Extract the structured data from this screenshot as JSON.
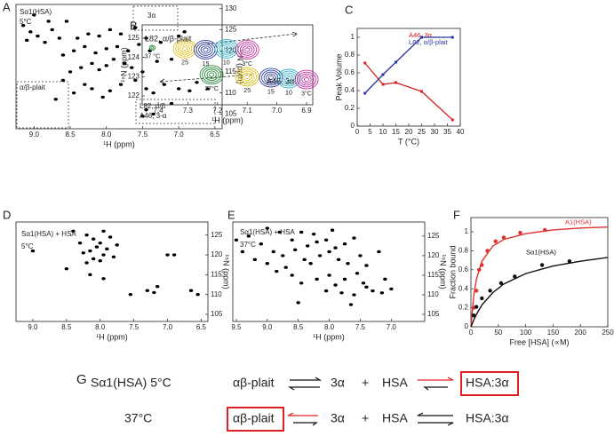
{
  "panel_labels": [
    "A",
    "B",
    "C",
    "D",
    "E",
    "F",
    "G"
  ],
  "chart_data": [
    {
      "type": "spectrum",
      "annotations": [
        "Sα1(HSA)",
        "5°C",
        "3α",
        "α/β-plait",
        "L82, α/β",
        "A46, 3-α"
      ],
      "xlabel": "¹H (ppm)",
      "ylabel": "¹⁵N (ppm)",
      "color": "#000000",
      "xlim": [
        9.25,
        6.4
      ],
      "ylim": [
        101.5,
        131
      ],
      "xticks": [
        {
          "value": 9,
          "label": "9.0"
        },
        8.5,
        {
          "value": 8,
          "label": "8.0"
        },
        7.5,
        {
          "value": 7,
          "label": "7.0"
        },
        6.5
      ],
      "yticks": [
        105,
        110,
        115,
        120,
        125,
        130
      ],
      "x": [
        8.45,
        8.3,
        8.2,
        8.05,
        7.95,
        7.8,
        7.6,
        7.45,
        7.35,
        7.2,
        7.0,
        6.85,
        6.75,
        6.6,
        8.5,
        8.35,
        8.2,
        8.1,
        8.0,
        7.9,
        7.75,
        7.65,
        7.5,
        7.3,
        7.1,
        8.6,
        8.45,
        8.3,
        8.15,
        8.0,
        7.85,
        7.7,
        7.55,
        7.4,
        7.25,
        8.4,
        8.25,
        8.1,
        7.95,
        7.8,
        7.6,
        7.45,
        9.1,
        9.05,
        8.95,
        8.85,
        8.75,
        8.65,
        9.15,
        8.8,
        9.0,
        7.5,
        7.35,
        7.45,
        7.0,
        6.92,
        8.6,
        8.7,
        7.1,
        8.55
      ],
      "values": [
        110,
        112,
        111,
        109,
        110.5,
        112,
        113,
        111,
        110,
        112,
        111,
        110.5,
        112.5,
        111,
        115,
        116,
        117,
        115.5,
        116.5,
        118,
        117,
        116,
        115,
        117.5,
        118,
        119,
        120,
        121,
        119.5,
        120.5,
        121,
        120,
        121.5,
        120,
        122,
        123,
        124,
        123.5,
        125,
        124,
        125.5,
        123,
        122.5,
        124.5,
        123.5,
        122,
        125,
        123,
        126,
        127,
        128.5,
        104.5,
        105,
        106,
        123.5,
        124.5,
        113,
        108.5,
        107.5,
        127
      ]
    },
    {
      "type": "contour",
      "xlabel": "¹H (ppm)",
      "ylabel": "¹⁵N (ppm)",
      "xlim": [
        7.454,
        6.879
      ],
      "ylim": [
        121.54,
        125.69
      ],
      "xticks": [
        7.4,
        7.3,
        7.2,
        7.1,
        {
          "value": 7,
          "label": "7.0"
        },
        6.9
      ],
      "yticks": [
        122,
        123,
        124,
        125
      ],
      "colors": [
        "#2e8b3a",
        "#e0c020",
        "#3040a0",
        "#30b0c8",
        "#c030a0"
      ],
      "rows": [
        {
          "label": "L82, α/β-plait",
          "labels": [
            "37°C",
            "25",
            "15",
            "10",
            "3°C"
          ],
          "x": [
            7.22,
            7.1,
            7.02,
            6.96,
            6.9
          ],
          "values": [
            123.1,
            123.0,
            122.95,
            122.9,
            122.85
          ]
        },
        {
          "label": "A46, 3α",
          "labels": [
            "37 °C",
            "25",
            "15",
            "10",
            "3°C"
          ],
          "x": [
            7.42,
            7.31,
            7.24,
            7.17,
            7.1
          ],
          "values": [
            124.5,
            124.45,
            124.4,
            124.45,
            124.4
          ]
        }
      ]
    },
    {
      "type": "line",
      "xlabel": "T (°C)",
      "ylabel": "Peak Volume",
      "xlim": [
        0,
        40
      ],
      "ylim": [
        0,
        1.1
      ],
      "xticks": [
        0,
        5,
        10,
        15,
        20,
        25,
        30,
        35,
        40
      ],
      "yticks": [
        0,
        0.2,
        0.4,
        0.6,
        0.8,
        1
      ],
      "series": [
        {
          "name": "A46, 3α",
          "color": "#d62020",
          "x": [
            3,
            10,
            15,
            25,
            37
          ],
          "values": [
            0.71,
            0.47,
            0.49,
            0.39,
            0.07
          ]
        },
        {
          "name": "L82, α/β-plait",
          "color": "#2a35a0",
          "x": [
            3,
            10,
            15,
            25,
            37
          ],
          "values": [
            0.37,
            0.58,
            0.72,
            1.0,
            1.0
          ]
        }
      ]
    },
    {
      "type": "spectrum",
      "annotations": [
        "Sα1(HSA) + HSA",
        "5°C"
      ],
      "xlabel": "¹H (ppm)",
      "ylabel": "¹⁵N (ppm)",
      "color": "#000000",
      "xlim": [
        9.25,
        6.4
      ],
      "ylim": [
        103.2,
        128.3
      ],
      "xticks": [
        {
          "value": 9,
          "label": "9.0"
        },
        8.5,
        {
          "value": 8,
          "label": "8.0"
        },
        7.5,
        {
          "value": 7,
          "label": "7.0"
        },
        6.5
      ],
      "yticks": [
        105,
        110,
        115,
        120,
        125
      ],
      "x": [
        8.2,
        8.1,
        8.0,
        7.95,
        8.15,
        8.05,
        7.9,
        8.25,
        8.1,
        8.0,
        7.85,
        8.2,
        7.95,
        8.3,
        7.8,
        7.75,
        7.2,
        7.15,
        7.3,
        6.65,
        6.55,
        7.0,
        6.9,
        7.55,
        8.15,
        7.95,
        8.5,
        9.0,
        8.4
      ],
      "values": [
        118,
        119,
        118.5,
        120,
        121,
        122,
        121.5,
        120.5,
        124,
        123,
        124.5,
        125,
        126,
        123,
        119.5,
        122.5,
        110.5,
        112,
        111,
        111,
        110,
        120,
        120,
        110,
        115,
        114,
        116.5,
        121,
        126
      ]
    },
    {
      "type": "spectrum",
      "annotations": [
        "Sα1(HSA) + HSA",
        "37°C"
      ],
      "xlabel": "¹H (ppm)",
      "ylabel": "¹⁵N (ppm)",
      "color": "#000000",
      "xlim": [
        9.556,
        6.46
      ],
      "ylim": [
        103.2,
        128.6
      ],
      "xticks": [
        9.5,
        {
          "value": 9,
          "label": "9.0"
        },
        8.5,
        {
          "value": 8,
          "label": "8.0"
        },
        7.5,
        {
          "value": 7,
          "label": "7.0"
        }
      ],
      "yticks": [
        105,
        110,
        115,
        120,
        125
      ],
      "x": [
        7.3,
        7.15,
        7.0,
        7.4,
        7.6,
        7.8,
        7.9,
        8.05,
        8.2,
        8.0,
        7.75,
        7.55,
        7.45,
        8.45,
        8.6,
        8.7,
        8.85,
        9.0,
        9.2,
        9.4,
        9.5,
        9.3,
        9.1,
        8.9,
        8.75,
        8.55,
        8.4,
        8.3,
        8.15,
        8.0,
        7.85,
        7.7,
        7.5,
        7.4,
        8.35,
        8.2,
        8.05,
        7.9,
        7.75,
        7.6,
        8.6,
        8.8,
        9.0,
        8.45,
        8.25,
        7.95,
        7.2,
        7.1,
        8.5,
        7.65
      ],
      "values": [
        111,
        110.5,
        111.5,
        112,
        110,
        110.5,
        112.5,
        111,
        114,
        115,
        114,
        115.5,
        113,
        113,
        115,
        117,
        116,
        118,
        119,
        121,
        124,
        125,
        123,
        121,
        120,
        121.5,
        119,
        118,
        120,
        121,
        119,
        118,
        120,
        117.5,
        122.5,
        123.5,
        124,
        122,
        123,
        124.5,
        124,
        126,
        127,
        126,
        125.5,
        126.5,
        121,
        114,
        108,
        107.5
      ]
    },
    {
      "type": "binding",
      "xlabel": "Free [HSA] (∝M)",
      "ylabel": "Fraction bound",
      "xlim": [
        0,
        250
      ],
      "ylim": [
        0,
        1.15
      ],
      "xticks": [
        0,
        50,
        100,
        150,
        200,
        250
      ],
      "yticks": [
        0,
        0.2,
        0.4,
        0.6,
        0.8,
        1
      ],
      "series": [
        {
          "name": "A1(HSA)",
          "color": "#e03030",
          "x": [
            5,
            10,
            15,
            20,
            30,
            45,
            60,
            90,
            135
          ],
          "values": [
            0.2,
            0.38,
            0.6,
            0.65,
            0.8,
            0.9,
            0.94,
            0.99,
            1.02
          ],
          "fit_x": [
            0,
            5,
            10,
            20,
            40,
            60,
            100,
            150,
            200,
            250
          ],
          "fit_values": [
            0,
            0.32,
            0.5,
            0.69,
            0.85,
            0.92,
            0.98,
            1.02,
            1.04,
            1.05
          ]
        },
        {
          "name": "Sα1(HSA)",
          "color": "#111111",
          "x": [
            5,
            10,
            20,
            35,
            55,
            80,
            130,
            180
          ],
          "values": [
            0.12,
            0.21,
            0.3,
            0.38,
            0.46,
            0.53,
            0.65,
            0.69
          ],
          "fit_x": [
            0,
            5,
            10,
            20,
            40,
            60,
            100,
            150,
            200,
            250
          ],
          "fit_values": [
            0,
            0.07,
            0.13,
            0.23,
            0.36,
            0.45,
            0.56,
            0.64,
            0.69,
            0.73
          ]
        }
      ]
    }
  ],
  "scheme": {
    "row1": {
      "condition": "Sα1(HSA) 5°C",
      "a": "αβ-plait",
      "b": "3α",
      "plus": "+",
      "c": "HSA",
      "d": "HSA:3α"
    },
    "row2": {
      "condition": "37°C",
      "a": "αβ-plait",
      "b": "3α",
      "plus": "+",
      "c": "HSA",
      "d": "HSA:3α"
    }
  }
}
